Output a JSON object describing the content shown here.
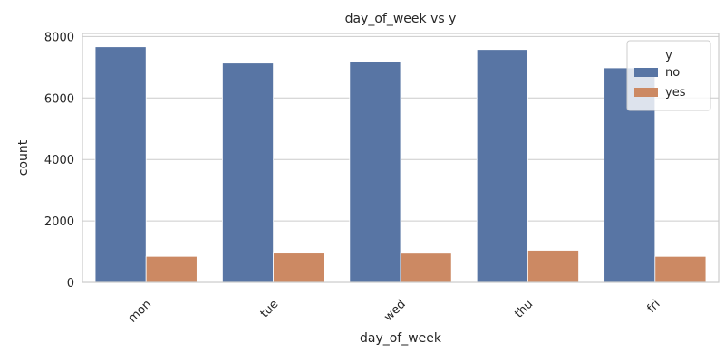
{
  "chart_data": {
    "type": "bar",
    "title": "day_of_week vs y",
    "xlabel": "day_of_week",
    "ylabel": "count",
    "categories": [
      "mon",
      "tue",
      "wed",
      "thu",
      "fri"
    ],
    "series": [
      {
        "name": "no",
        "values": [
          7667,
          7137,
          7185,
          7578,
          6981
        ],
        "color": "#5875a4"
      },
      {
        "name": "yes",
        "values": [
          847,
          953,
          949,
          1045,
          846
        ],
        "color": "#cc8963"
      }
    ],
    "ylim": [
      0,
      8100
    ],
    "yticks": [
      0,
      2000,
      4000,
      6000,
      8000
    ],
    "legend": {
      "title": "y",
      "position": "top-right"
    },
    "grid": true
  }
}
